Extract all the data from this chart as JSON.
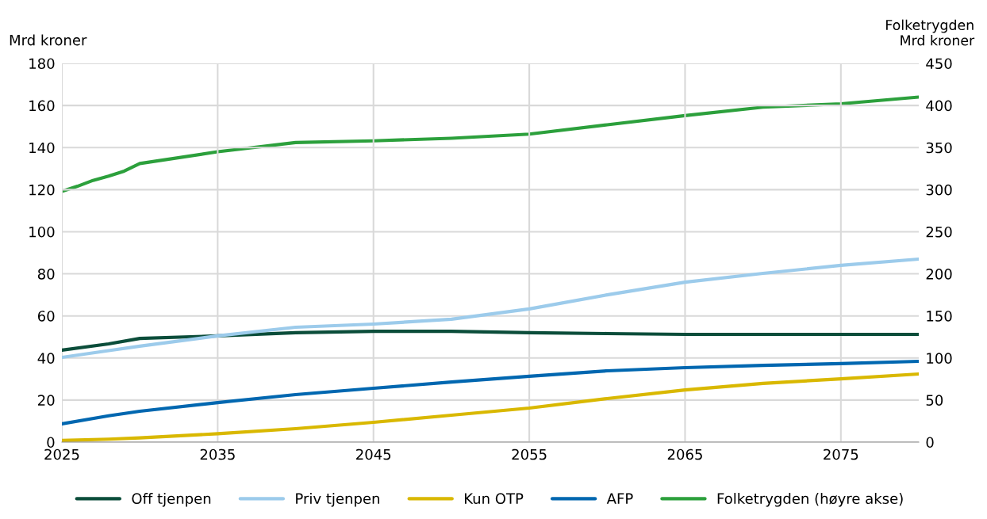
{
  "chart_data": {
    "type": "line",
    "ylabel": "Mrd kroner",
    "y2label": "Folketrygden\nMrd kroner",
    "x": [
      2025,
      2028,
      2030,
      2035,
      2040,
      2045,
      2050,
      2055,
      2060,
      2065,
      2070,
      2075,
      2080
    ],
    "xlim": [
      2025,
      2080
    ],
    "xticks": [
      2025,
      2035,
      2045,
      2055,
      2065,
      2075
    ],
    "ylim": [
      0,
      180
    ],
    "yticks": [
      0,
      20,
      40,
      60,
      80,
      100,
      120,
      140,
      160,
      180
    ],
    "y2lim": [
      0,
      450
    ],
    "y2ticks": [
      0,
      50,
      100,
      150,
      200,
      250,
      300,
      350,
      400,
      450
    ],
    "grid": true,
    "legend": "bottom",
    "marker": "none",
    "line_style": "solid",
    "series": [
      {
        "name": "Off tjenpen",
        "color": "#0b4d3a",
        "values": [
          43.7,
          46.7,
          49.3,
          50.5,
          52,
          52.7,
          52.7,
          52,
          51.6,
          51.2,
          51.2,
          51.2,
          51.2
        ]
      },
      {
        "name": "Priv tjenpen",
        "color": "#9ccbeb",
        "values": [
          40.3,
          43.5,
          45.6,
          50.5,
          54.6,
          56.1,
          58.4,
          63.3,
          70,
          76,
          80.2,
          84,
          87
        ]
      },
      {
        "name": "Kun OTP",
        "color": "#d9b800",
        "values": [
          0.8,
          1.4,
          2,
          4,
          6.4,
          9.4,
          12.8,
          16.2,
          20.7,
          24.8,
          27.9,
          30.1,
          32.4
        ]
      },
      {
        "name": "AFP",
        "color": "#0067b0",
        "values": [
          8.7,
          12.5,
          14.7,
          18.8,
          22.6,
          25.6,
          28.6,
          31.3,
          33.9,
          35.4,
          36.5,
          37.3,
          38.4
        ]
      },
      {
        "name": "Folketrygden (høyre akse)",
        "color": "#2ca03c",
        "axis": "y2",
        "x": [
          2025,
          2026,
          2027,
          2028,
          2029,
          2030,
          2035,
          2040,
          2045,
          2050,
          2055,
          2060,
          2065,
          2070,
          2075,
          2080
        ],
        "values": [
          298,
          304,
          311,
          316,
          322,
          331,
          345,
          356,
          358,
          361,
          366,
          377,
          388,
          398,
          402,
          410
        ]
      }
    ]
  }
}
